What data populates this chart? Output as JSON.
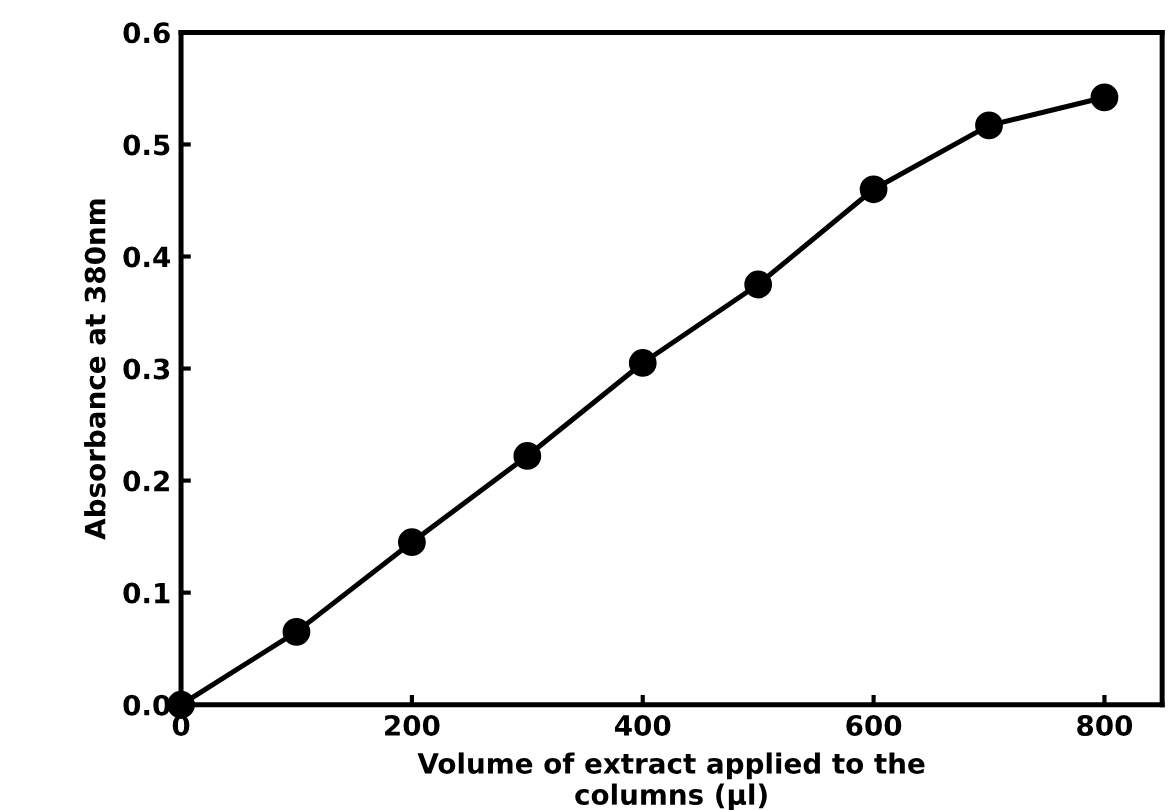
{
  "chart_data": {
    "type": "line",
    "xlabel": "Volume of extract applied to the\ncolumns (µl)",
    "ylabel": "Absorbance at 380nm",
    "x": [
      0,
      100,
      200,
      300,
      400,
      500,
      600,
      700,
      800
    ],
    "series": [
      {
        "color": "#000000",
        "values": [
          0,
          0.065,
          0.145,
          0.222,
          0.305,
          0.375,
          0.46,
          0.517,
          0.542
        ]
      }
    ],
    "marker": "circle",
    "line_style": "solid",
    "grid": false,
    "legend": false,
    "xlim": [
      0,
      850
    ],
    "ylim": [
      0,
      0.6
    ],
    "xticks": [
      0,
      200,
      400,
      600,
      800
    ],
    "yticks": [
      {
        "value": 0,
        "label": "0.0"
      },
      0.1,
      0.2,
      0.3,
      0.4,
      0.5,
      0.6
    ]
  }
}
